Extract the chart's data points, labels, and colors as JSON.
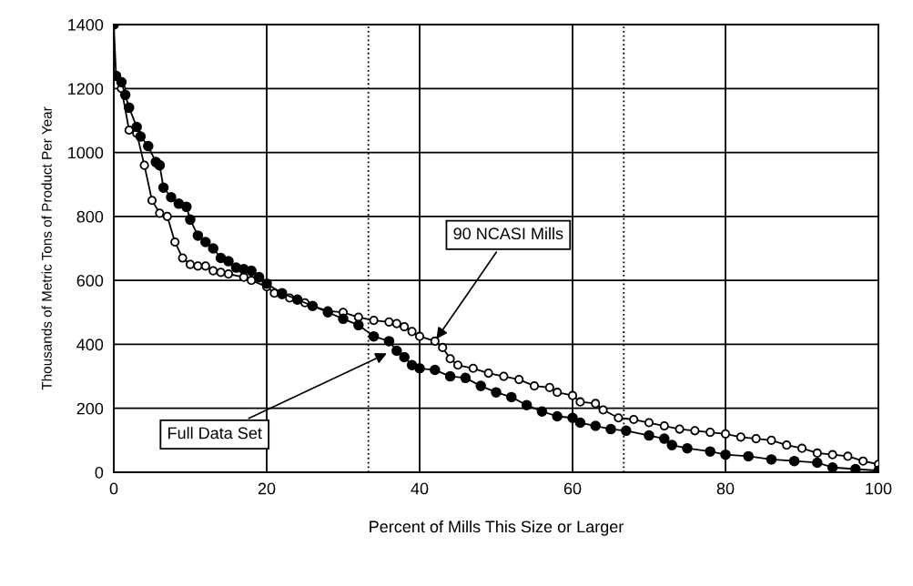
{
  "chart_data": {
    "type": "line",
    "xlabel": "Percent of Mills This Size or Larger",
    "ylabel": "Thousands of Metric Tons of Product Per Year",
    "xlim": [
      0,
      100
    ],
    "xticks": [
      0,
      20,
      40,
      60,
      80,
      100
    ],
    "ylim": [
      0,
      1400
    ],
    "yticks": [
      0,
      200,
      400,
      600,
      800,
      1000,
      1200,
      1400
    ],
    "grid": true,
    "marker": "circle",
    "line_style": "solid",
    "series": [
      {
        "color": "#000000",
        "x": [
          0,
          0.3,
          1,
          1.5,
          2,
          3,
          3.5,
          4.5,
          5.5,
          6,
          6.5,
          7.5,
          8.5,
          9.5,
          10,
          11,
          12,
          13,
          14,
          15,
          16,
          17,
          18,
          19,
          20,
          22,
          24,
          26,
          28,
          30,
          32,
          34,
          36,
          37,
          38,
          39,
          40,
          42,
          44,
          46,
          48,
          50,
          52,
          54,
          56,
          58,
          60,
          61,
          63,
          65,
          67,
          70,
          72,
          73,
          75,
          78,
          80,
          83,
          86,
          89,
          92,
          94,
          97,
          100
        ],
        "values": [
          1400,
          1240,
          1220,
          1180,
          1140,
          1080,
          1050,
          1020,
          970,
          960,
          890,
          860,
          840,
          830,
          790,
          740,
          720,
          700,
          670,
          660,
          640,
          635,
          630,
          610,
          590,
          560,
          540,
          520,
          500,
          480,
          460,
          425,
          410,
          380,
          360,
          335,
          325,
          320,
          300,
          295,
          270,
          250,
          235,
          210,
          190,
          175,
          170,
          155,
          145,
          135,
          130,
          115,
          105,
          85,
          75,
          65,
          55,
          50,
          40,
          35,
          30,
          15,
          10,
          5
        ]
      },
      {
        "color": "#000000",
        "x": [
          1,
          2,
          3,
          4,
          5,
          6,
          7,
          8,
          9,
          10,
          11,
          12,
          13,
          14,
          15,
          17,
          18,
          20,
          21,
          22,
          23,
          24,
          25,
          26,
          28,
          30,
          32,
          34,
          36,
          37,
          38,
          39,
          40,
          42,
          43,
          44,
          45,
          47,
          49,
          51,
          53,
          55,
          57,
          58,
          60,
          61,
          63,
          64,
          66,
          68,
          70,
          72,
          74,
          76,
          78,
          80,
          82,
          84,
          86,
          88,
          90,
          92,
          94,
          96,
          98,
          100
        ],
        "values": [
          1200,
          1070,
          1060,
          960,
          850,
          810,
          800,
          720,
          670,
          650,
          645,
          645,
          630,
          625,
          620,
          610,
          600,
          580,
          560,
          555,
          545,
          540,
          530,
          520,
          505,
          500,
          485,
          475,
          470,
          465,
          455,
          440,
          425,
          410,
          390,
          355,
          335,
          325,
          310,
          300,
          290,
          270,
          265,
          250,
          240,
          220,
          215,
          195,
          170,
          165,
          155,
          145,
          135,
          130,
          125,
          120,
          110,
          105,
          100,
          85,
          75,
          60,
          55,
          50,
          35,
          25
        ]
      }
    ],
    "ref_lines": [
      {
        "axis": "x",
        "value": 33.3,
        "color": "#000000",
        "line_style": "dotted"
      },
      {
        "axis": "x",
        "value": 66.7,
        "color": "#000000",
        "line_style": "dotted"
      }
    ],
    "annotations": [
      {
        "text": "90 NCASI Mills",
        "x": 42,
        "y": 410
      },
      {
        "text": "Full Data Set",
        "x": 36,
        "y": 375
      }
    ]
  }
}
